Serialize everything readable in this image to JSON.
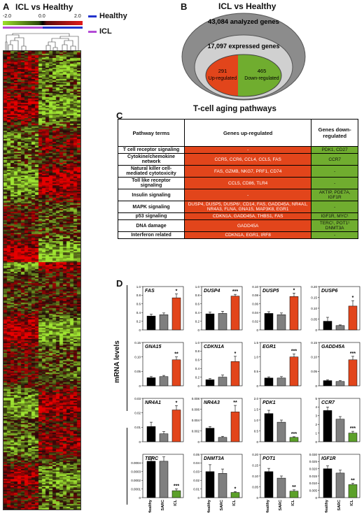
{
  "panel_a": {
    "label": "A",
    "title": "ICL vs Healthy",
    "scale_min": "-2.0",
    "scale_mid": "0.0",
    "scale_max": "2.0",
    "legend": [
      {
        "label": "Healthy",
        "color": "#2233cc"
      },
      {
        "label": "ICL",
        "color": "#b44bd6"
      }
    ]
  },
  "panel_b": {
    "label": "B",
    "title": "ICL vs Healthy",
    "analyzed": "43,084 analyzed genes",
    "expressed": "17,097 expressed genes",
    "up_count": "291",
    "up_label": "Up-regulated",
    "down_count": "465",
    "down_label": "Down-regulated"
  },
  "panel_c": {
    "label": "C",
    "title": "T-cell aging pathways",
    "headers": [
      "Pathway terms",
      "Genes up-regulated",
      "Genes down-regulated"
    ],
    "rows": [
      {
        "term": "T cell receptor signaling",
        "up": "-",
        "down": "PDK1, CD27"
      },
      {
        "term": "Cytokine/chemokine network",
        "up": "CCR5, CCR6, CCL4, CCL5, FAS",
        "down": "CCR7"
      },
      {
        "term": "Natural killer cell-mediated cytotoxicity",
        "up": "FAS, GZMB, NKG7, PRF1, CD74",
        "down": "-"
      },
      {
        "term": "Toll like receptor signaling",
        "up": "CCL5, CD86, TLR4",
        "down": "-"
      },
      {
        "term": "Insulin signaling",
        "up": "-",
        "down": "AKTIP, PDE7A, IGF1R"
      },
      {
        "term": "MAPK signaling",
        "up": "DUSP4, DUSP5, DUSP6¹, CD14, FAS, GADD45A, NR4A1, NR4A3, FLNA, GNA15, MAP3K8, EGR1",
        "down": "-"
      },
      {
        "term": "p53 signaling",
        "up": "CDKN1A, GADD45A, THBS1, FAS",
        "down": "IGF1R, MYC¹"
      },
      {
        "term": "DNA damage",
        "up": "GADD45A",
        "down": "TERC¹, POT1¹ DNMT3A"
      },
      {
        "term": "Interferon related",
        "up": "CDKN1A, EGR1, IRF8",
        "down": "-"
      }
    ]
  },
  "panel_d": {
    "label": "D",
    "ylabel": "mRNA levels",
    "groups": [
      "Healthy",
      "SARC",
      "ICL"
    ],
    "colors": {
      "healthy": "#000000",
      "sarc": "#7f7f7f",
      "icl_up": "#e2451b",
      "icl_down": "#5ca02a"
    }
  },
  "chart_data": [
    {
      "type": "bar",
      "title": "FAS",
      "categories": [
        "Healthy",
        "SARC",
        "ICL"
      ],
      "values": [
        0.32,
        0.35,
        0.74
      ],
      "errors": [
        0.04,
        0.04,
        0.09
      ],
      "ylim": [
        0,
        1.0
      ],
      "yticks": [
        "0",
        "0.2",
        "0.4",
        "0.6",
        "0.8",
        "1.0"
      ],
      "sig": "*"
    },
    {
      "type": "bar",
      "title": "DUSP4",
      "categories": [
        "Healthy",
        "SARC",
        "ICL"
      ],
      "values": [
        0.37,
        0.38,
        0.78
      ],
      "errors": [
        0.04,
        0.05,
        0.04
      ],
      "ylim": [
        0,
        1.0
      ],
      "yticks": [
        "0",
        "0.2",
        "0.4",
        "0.6",
        "0.8",
        "1.0"
      ],
      "sig": "***"
    },
    {
      "type": "bar",
      "title": "DUSP5",
      "categories": [
        "Healthy",
        "SARC",
        "ICL"
      ],
      "values": [
        0.038,
        0.035,
        0.077
      ],
      "errors": [
        0.004,
        0.004,
        0.008
      ],
      "ylim": [
        0,
        0.1
      ],
      "yticks": [
        "0",
        "0.02",
        "0.04",
        "0.06",
        "0.08",
        "0.10"
      ],
      "sig": "*"
    },
    {
      "type": "bar",
      "title": "DUSP6",
      "categories": [
        "Healthy",
        "SARC",
        "ICL"
      ],
      "values": [
        0.04,
        0.02,
        0.11
      ],
      "errors": [
        0.018,
        0.003,
        0.025
      ],
      "ylim": [
        0,
        0.2
      ],
      "yticks": [
        "0",
        "0.05",
        "0.10",
        "0.15",
        "0.20"
      ],
      "sig": "*"
    },
    {
      "type": "bar",
      "title": "GNA15",
      "categories": [
        "Healthy",
        "SARC",
        "ICL"
      ],
      "values": [
        0.028,
        0.032,
        0.09
      ],
      "errors": [
        0.004,
        0.004,
        0.01
      ],
      "ylim": [
        0,
        0.15
      ],
      "yticks": [
        "0",
        "0.05",
        "0.10",
        "0.15"
      ],
      "sig": "**"
    },
    {
      "type": "bar",
      "title": "CDKN1A",
      "categories": [
        "Healthy",
        "SARC",
        "ICL"
      ],
      "values": [
        0.14,
        0.2,
        0.56
      ],
      "errors": [
        0.03,
        0.05,
        0.12
      ],
      "ylim": [
        0,
        1.0
      ],
      "yticks": [
        "0",
        "0.2",
        "0.4",
        "0.6",
        "0.8",
        "1.0"
      ],
      "sig": "*"
    },
    {
      "type": "bar",
      "title": "EGR1",
      "categories": [
        "Healthy",
        "SARC",
        "ICL"
      ],
      "values": [
        0.27,
        0.27,
        1.0
      ],
      "errors": [
        0.04,
        0.05,
        0.1
      ],
      "ylim": [
        0,
        1.5
      ],
      "yticks": [
        "0",
        "0.5",
        "1.0",
        "1.5"
      ],
      "sig": "***"
    },
    {
      "type": "bar",
      "title": "GADD45A",
      "categories": [
        "Healthy",
        "SARC",
        "ICL"
      ],
      "values": [
        0.018,
        0.015,
        0.09
      ],
      "errors": [
        0.003,
        0.003,
        0.012
      ],
      "ylim": [
        0,
        0.15
      ],
      "yticks": [
        "0",
        "0.05",
        "0.10",
        "0.15"
      ],
      "sig": "***"
    },
    {
      "type": "bar",
      "title": "NR4A1",
      "categories": [
        "Healthy",
        "SARC",
        "ICL"
      ],
      "values": [
        0.0105,
        0.0055,
        0.022
      ],
      "errors": [
        0.003,
        0.0015,
        0.003
      ],
      "ylim": [
        0,
        0.03
      ],
      "yticks": [
        "0",
        "0.01",
        "0.02",
        "0.03"
      ],
      "sig": "*"
    },
    {
      "type": "bar",
      "title": "NR4A3",
      "categories": [
        "Healthy",
        "SARC",
        "ICL"
      ],
      "values": [
        0.0025,
        0.0008,
        0.0055
      ],
      "errors": [
        0.0003,
        0.0002,
        0.0012
      ],
      "ylim": [
        0,
        0.008
      ],
      "yticks": [
        "0",
        "0.002",
        "0.004",
        "0.006",
        "0.008"
      ],
      "sig": "**"
    },
    {
      "type": "bar",
      "title": "PDK1",
      "categories": [
        "Healthy",
        "SARC",
        "ICL"
      ],
      "values": [
        1.3,
        0.9,
        0.2
      ],
      "errors": [
        0.15,
        0.1,
        0.03
      ],
      "ylim": [
        0,
        2.0
      ],
      "yticks": [
        "0",
        "0.5",
        "1.0",
        "1.5",
        "2.0"
      ],
      "sig": "***"
    },
    {
      "type": "bar",
      "title": "CCR7",
      "categories": [
        "Healthy",
        "SARC",
        "ICL"
      ],
      "values": [
        3.6,
        2.6,
        1.0
      ],
      "errors": [
        0.4,
        0.3,
        0.2
      ],
      "ylim": [
        0,
        5
      ],
      "yticks": [
        "0",
        "1",
        "2",
        "3",
        "4",
        "5"
      ],
      "sig": "***"
    },
    {
      "type": "bar",
      "title": "TERC",
      "categories": [
        "Healthy",
        "SARC",
        "ICL"
      ],
      "values": [
        0.00042,
        0.00042,
        8e-05
      ],
      "errors": [
        5e-05,
        5e-05,
        2e-05
      ],
      "ylim": [
        0,
        0.0005
      ],
      "yticks": [
        "0",
        "0.0001",
        "0.0002",
        "0.0003",
        "0.0004"
      ],
      "sig": "***"
    },
    {
      "type": "bar",
      "title": "DNMT3A",
      "categories": [
        "Healthy",
        "SARC",
        "ICL"
      ],
      "values": [
        0.03,
        0.028,
        0.006
      ],
      "errors": [
        0.008,
        0.005,
        0.001
      ],
      "ylim": [
        0,
        0.05
      ],
      "yticks": [
        "0",
        "0.01",
        "0.02",
        "0.03",
        "0.04",
        "0.05"
      ],
      "sig": "*"
    },
    {
      "type": "bar",
      "title": "POT1",
      "categories": [
        "Healthy",
        "SARC",
        "ICL"
      ],
      "values": [
        0.12,
        0.09,
        0.03
      ],
      "errors": [
        0.015,
        0.01,
        0.006
      ],
      "ylim": [
        0,
        0.2
      ],
      "yticks": [
        "0",
        "0.05",
        "0.10",
        "0.15",
        "0.20"
      ],
      "sig": "**"
    },
    {
      "type": "bar",
      "title": "IGF1R",
      "categories": [
        "Healthy",
        "SARC",
        "ICL"
      ],
      "values": [
        0.02,
        0.017,
        0.009
      ],
      "errors": [
        0.002,
        0.002,
        0.001
      ],
      "ylim": [
        0,
        0.03
      ],
      "yticks": [
        "0",
        "0.005",
        "0.010",
        "0.015",
        "0.020",
        "0.025",
        "0.030"
      ],
      "sig": "**"
    }
  ]
}
